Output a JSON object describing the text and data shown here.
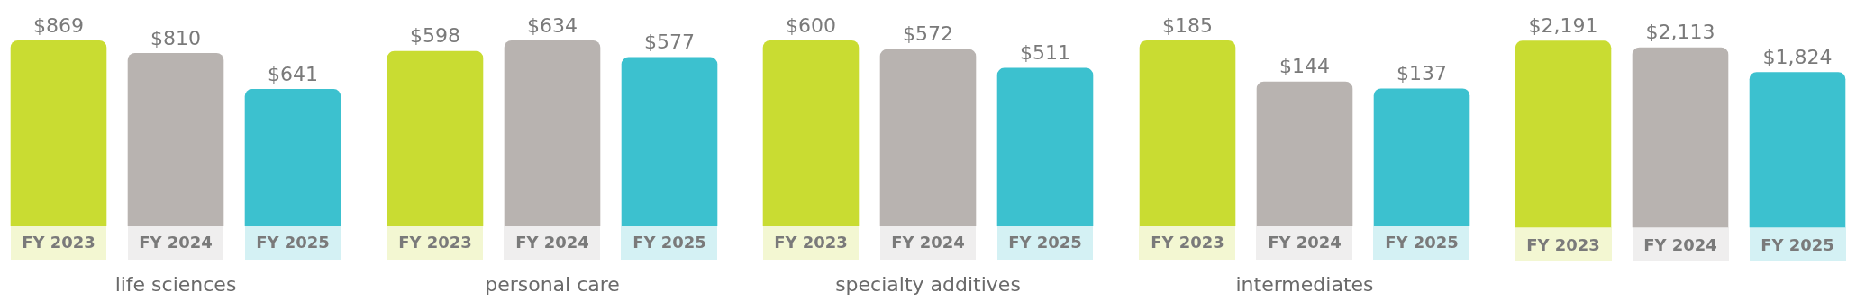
{
  "chart_data": [
    {
      "type": "bar",
      "xlabel": "life sciences",
      "categories": [
        "FY 2023",
        "FY 2024",
        "FY 2025"
      ],
      "values": [
        869,
        810,
        641
      ],
      "value_labels": [
        "$869",
        "$810",
        "$641"
      ],
      "colors": [
        "#c9dc32",
        "#b8b3b0",
        "#3cc1cf"
      ],
      "grid": false,
      "legend": false
    },
    {
      "type": "bar",
      "xlabel": "personal care",
      "categories": [
        "FY 2023",
        "FY 2024",
        "FY 2025"
      ],
      "values": [
        598,
        634,
        577
      ],
      "value_labels": [
        "$598",
        "$634",
        "$577"
      ],
      "colors": [
        "#c9dc32",
        "#b8b3b0",
        "#3cc1cf"
      ],
      "grid": false,
      "legend": false
    },
    {
      "type": "bar",
      "xlabel": "specialty additives",
      "categories": [
        "FY 2023",
        "FY 2024",
        "FY 2025"
      ],
      "values": [
        600,
        572,
        511
      ],
      "value_labels": [
        "$600",
        "$572",
        "$511"
      ],
      "colors": [
        "#c9dc32",
        "#b8b3b0",
        "#3cc1cf"
      ],
      "grid": false,
      "legend": false
    },
    {
      "type": "bar",
      "xlabel": "intermediates",
      "categories": [
        "FY 2023",
        "FY 2024",
        "FY 2025"
      ],
      "values": [
        185,
        144,
        137
      ],
      "value_labels": [
        "$185",
        "$144",
        "$137"
      ],
      "colors": [
        "#c9dc32",
        "#b8b3b0",
        "#3cc1cf"
      ],
      "grid": false,
      "legend": false
    },
    {
      "type": "bar",
      "categories": [
        "FY 2023",
        "FY 2024",
        "FY 2025"
      ],
      "values": [
        2191,
        2113,
        1824
      ],
      "value_labels": [
        "$2,191",
        "$2,113",
        "$1,824"
      ],
      "colors": [
        "#c9dc32",
        "#b8b3b0",
        "#3cc1cf"
      ],
      "grid": false,
      "legend": false
    }
  ]
}
